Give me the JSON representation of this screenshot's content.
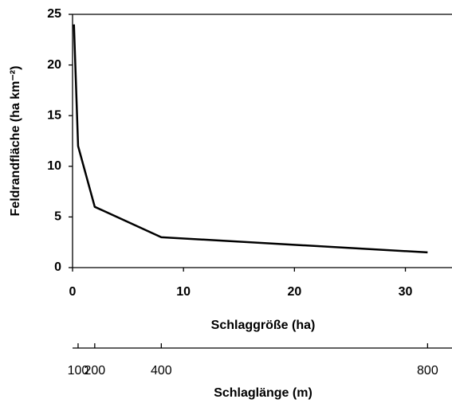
{
  "chart_data": {
    "type": "line",
    "x": [
      0.125,
      0.5,
      2,
      8,
      32
    ],
    "values": [
      24,
      12,
      6,
      3,
      1.5
    ],
    "color": "#000000",
    "xlabel": "Schlaggröße (ha)",
    "ylabel": "Feldrandfläche (ha km⁻²)",
    "xlim": [
      0,
      34.2
    ],
    "xticks": [
      0,
      10,
      20,
      30
    ],
    "ylim": [
      0,
      25
    ],
    "yticks": [
      0,
      5,
      10,
      15,
      20,
      25
    ],
    "x2label": "Schlaglänge (m)",
    "x2ticks": [
      {
        "value": 0.5,
        "label": "100"
      },
      {
        "value": 2,
        "label": "200"
      },
      {
        "value": 8,
        "label": "400"
      },
      {
        "value": 32,
        "label": "800"
      }
    ]
  }
}
